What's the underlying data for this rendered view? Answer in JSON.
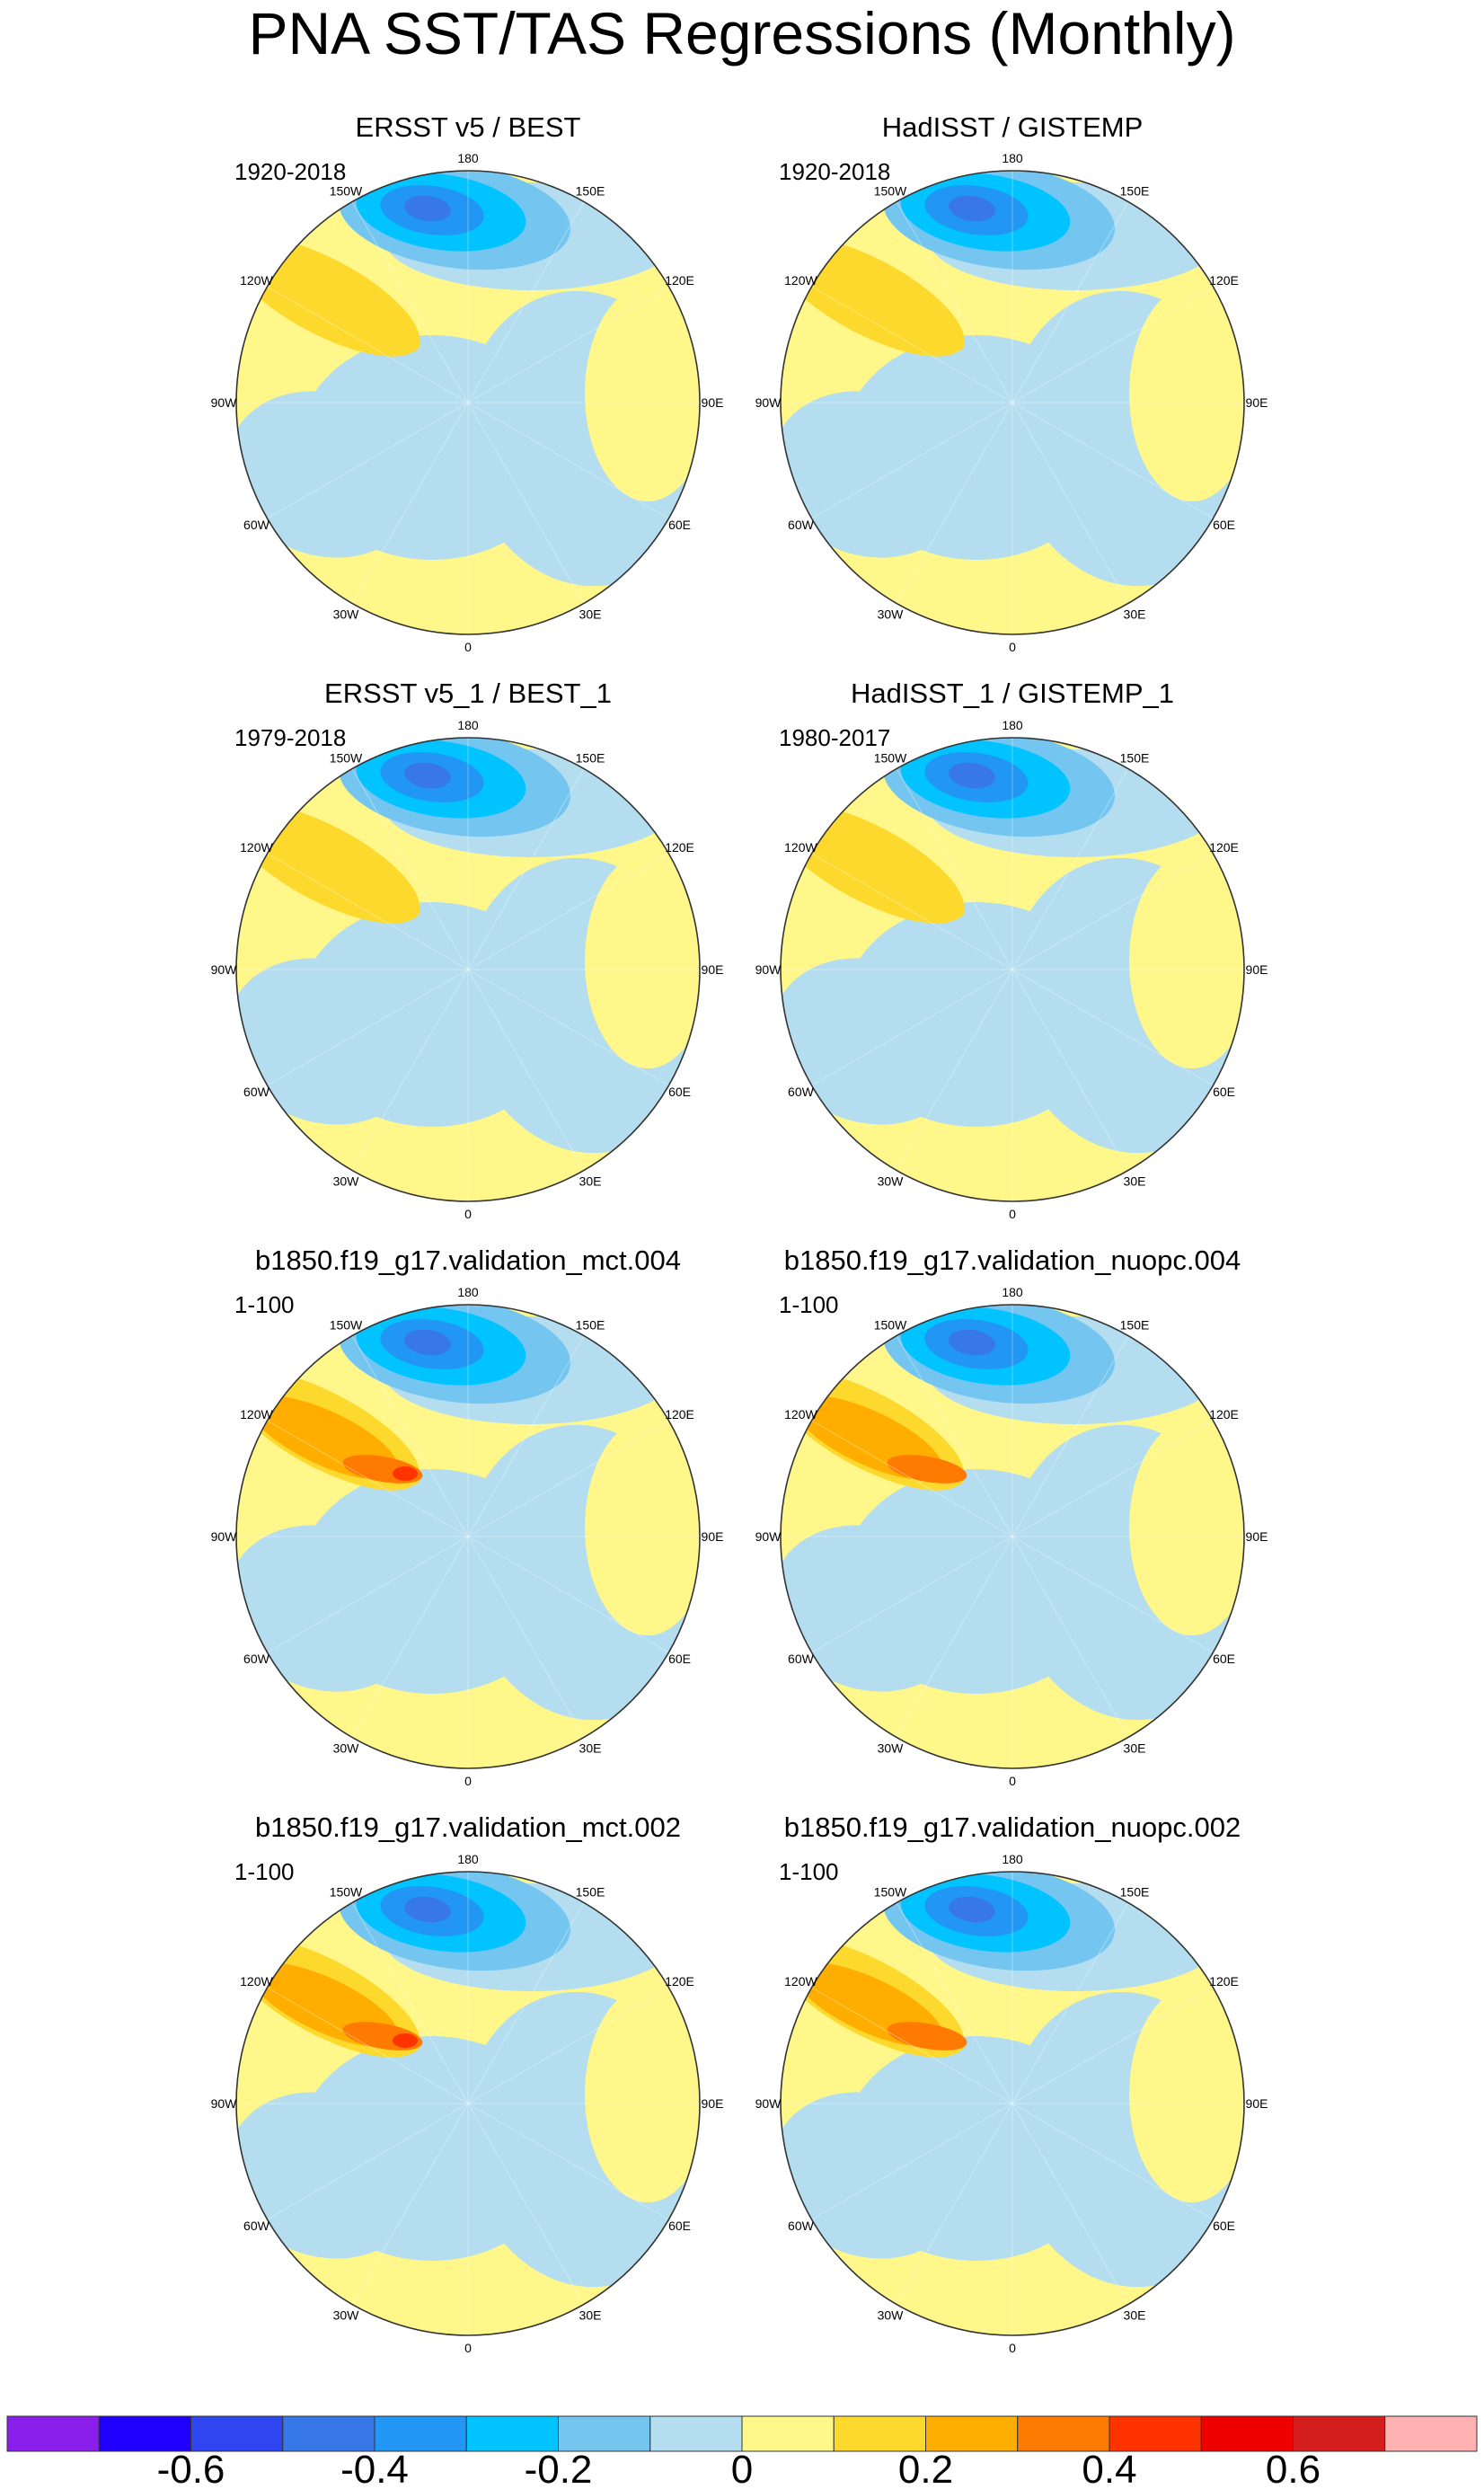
{
  "title": "PNA SST/TAS Regressions (Monthly)",
  "chart_data": {
    "type": "polar-contour-map",
    "projection": "north-polar-stereographic",
    "variable": "PNA SST/TAS regression",
    "longitude_labels": [
      "180",
      "150E",
      "120E",
      "90E",
      "60E",
      "30E",
      "0",
      "30W",
      "60W",
      "90W",
      "120W",
      "150W"
    ],
    "panels": [
      {
        "title": "ERSST v5 / BEST",
        "period": "1920-2018"
      },
      {
        "title": "HadISST / GISTEMP",
        "period": "1920-2018"
      },
      {
        "title": "ERSST v5_1 / BEST_1",
        "period": "1979-2018"
      },
      {
        "title": "HadISST_1 / GISTEMP_1",
        "period": "1980-2017"
      },
      {
        "title": "b1850.f19_g17.validation_mct.004",
        "period": "1-100"
      },
      {
        "title": "b1850.f19_g17.validation_nuopc.004",
        "period": "1-100"
      },
      {
        "title": "b1850.f19_g17.validation_mct.002",
        "period": "1-100"
      },
      {
        "title": "b1850.f19_g17.validation_nuopc.002",
        "period": "1-100"
      }
    ],
    "colorbar": {
      "colors": [
        "#8A1EEB",
        "#1F00FF",
        "#2E45F0",
        "#3877E8",
        "#2196F5",
        "#00C3FF",
        "#74C6F0",
        "#B4DDF0",
        "#FFF78A",
        "#FDD92E",
        "#FFAE00",
        "#FF7A00",
        "#FF3300",
        "#EE0000",
        "#D41D1D",
        "#FFB2B2"
      ],
      "tick_values": [
        -0.6,
        -0.4,
        -0.2,
        0,
        0.2,
        0.4,
        0.6
      ],
      "tick_labels": [
        "-0.6",
        "-0.4",
        "-0.2",
        "0",
        "0.2",
        "0.4",
        "0.6"
      ],
      "range": [
        -0.8,
        0.8
      ],
      "interval": 0.1
    }
  }
}
